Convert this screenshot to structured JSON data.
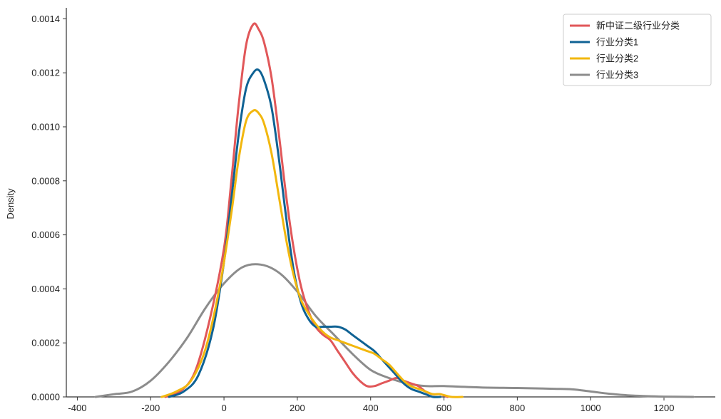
{
  "chart_data": {
    "type": "line",
    "title": "",
    "xlabel": "",
    "ylabel": "Density",
    "xlim": [
      -430,
      1340
    ],
    "ylim": [
      0,
      0.00143
    ],
    "x_ticks": [
      -400,
      -200,
      0,
      200,
      400,
      600,
      800,
      1000,
      1200
    ],
    "x_tick_labels": [
      "-400",
      "-200",
      "0",
      "200",
      "400",
      "600",
      "800",
      "1000",
      "1200"
    ],
    "y_ticks": [
      0,
      0.0002,
      0.0004,
      0.0006,
      0.0008,
      0.001,
      0.0012,
      0.0014
    ],
    "y_tick_labels": [
      "0.0000",
      "0.0002",
      "0.0004",
      "0.0006",
      "0.0008",
      "0.0010",
      "0.0012",
      "0.0014"
    ],
    "grid": false,
    "legend_position": "top-right",
    "series": [
      {
        "name": "新中证二级行业分类",
        "color": "#e15759",
        "x": [
          -160,
          -120,
          -80,
          -40,
          0,
          20,
          40,
          60,
          80,
          95,
          110,
          130,
          150,
          170,
          190,
          210,
          230,
          250,
          270,
          290,
          310,
          330,
          350,
          370,
          390,
          410,
          430,
          450,
          470,
          490,
          510,
          530,
          550,
          570,
          590,
          610
        ],
        "y": [
          0.0,
          2e-05,
          9e-05,
          0.00028,
          0.00055,
          0.0008,
          0.00108,
          0.0013,
          0.00138,
          0.00136,
          0.00131,
          0.00118,
          0.00097,
          0.00074,
          0.00055,
          0.00041,
          0.00032,
          0.00026,
          0.00023,
          0.00021,
          0.00017,
          0.00013,
          9e-05,
          6e-05,
          4e-05,
          4e-05,
          5e-05,
          6e-05,
          7e-05,
          6e-05,
          5e-05,
          4e-05,
          2e-05,
          1e-05,
          1e-05,
          0.0
        ]
      },
      {
        "name": "行业分类1",
        "color": "#0f6294",
        "x": [
          -150,
          -110,
          -70,
          -30,
          0,
          20,
          40,
          60,
          80,
          95,
          110,
          130,
          150,
          170,
          190,
          210,
          230,
          250,
          270,
          290,
          310,
          330,
          350,
          370,
          390,
          410,
          430,
          450,
          470,
          490,
          510,
          530,
          550,
          570,
          590
        ],
        "y": [
          0.0,
          2e-05,
          8e-05,
          0.00025,
          0.0005,
          0.00073,
          0.00097,
          0.00114,
          0.0012,
          0.00121,
          0.00117,
          0.00107,
          0.00088,
          0.00066,
          0.00047,
          0.00035,
          0.00029,
          0.00026,
          0.00026,
          0.00026,
          0.00026,
          0.00025,
          0.00023,
          0.00021,
          0.00019,
          0.00017,
          0.00014,
          0.00011,
          8e-05,
          5e-05,
          3e-05,
          2e-05,
          1e-05,
          0.0,
          0.0
        ]
      },
      {
        "name": "行业分类2",
        "color": "#f2b70e",
        "x": [
          -170,
          -130,
          -90,
          -50,
          -10,
          20,
          40,
          60,
          80,
          95,
          110,
          130,
          150,
          170,
          190,
          210,
          230,
          250,
          270,
          290,
          310,
          330,
          350,
          370,
          390,
          410,
          430,
          450,
          470,
          490,
          510,
          530,
          550,
          570,
          590,
          620,
          650
        ],
        "y": [
          0.0,
          2e-05,
          6e-05,
          0.00018,
          0.00042,
          0.00068,
          0.00088,
          0.00102,
          0.00106,
          0.00105,
          0.00101,
          0.0009,
          0.00074,
          0.00058,
          0.00045,
          0.00036,
          0.00031,
          0.00027,
          0.00024,
          0.00022,
          0.00021,
          0.0002,
          0.00019,
          0.00018,
          0.00017,
          0.00016,
          0.00014,
          0.00012,
          9e-05,
          6e-05,
          4e-05,
          3e-05,
          2e-05,
          1e-05,
          1e-05,
          0.0,
          0.0
        ]
      },
      {
        "name": "行业分类3",
        "color": "#8c8c8c",
        "x": [
          -350,
          -300,
          -250,
          -200,
          -150,
          -100,
          -50,
          0,
          50,
          100,
          150,
          200,
          250,
          300,
          350,
          400,
          450,
          500,
          550,
          600,
          700,
          800,
          900,
          950,
          1000,
          1050,
          1100,
          1150,
          1200,
          1280
        ],
        "y": [
          0.0,
          1e-05,
          2e-05,
          6e-05,
          0.00013,
          0.00022,
          0.00033,
          0.00042,
          0.00048,
          0.00049,
          0.00046,
          0.00039,
          0.0003,
          0.00023,
          0.00016,
          0.0001,
          7e-05,
          5e-05,
          4e-05,
          4e-05,
          3.5e-05,
          3.3e-05,
          3e-05,
          2.8e-05,
          2e-05,
          1.2e-05,
          6e-06,
          3e-06,
          1e-06,
          0.0
        ]
      }
    ]
  }
}
